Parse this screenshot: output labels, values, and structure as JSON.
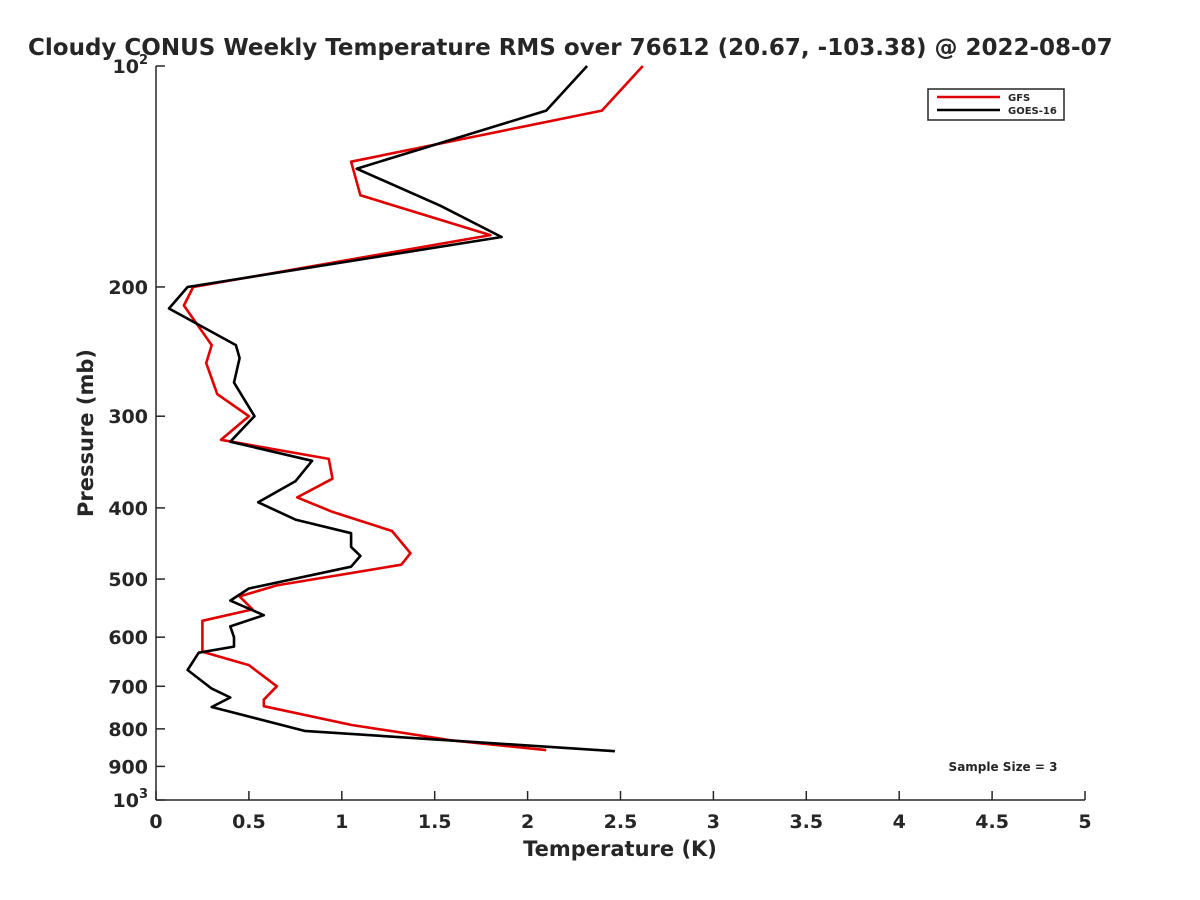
{
  "chart_data": {
    "type": "line",
    "title": "Cloudy CONUS Weekly Temperature RMS over 76612 (20.67, -103.38) @ 2022-08-07",
    "xlabel": "Temperature (K)",
    "ylabel": "Pressure (mb)",
    "xlim": [
      0,
      5
    ],
    "ylim": [
      100,
      1000
    ],
    "yscale": "log",
    "yreversed": true,
    "x_ticks": [
      0,
      0.5,
      1,
      1.5,
      2,
      2.5,
      3,
      3.5,
      4,
      4.5,
      5
    ],
    "x_tick_labels": [
      "0",
      "0.5",
      "1",
      "1.5",
      "2",
      "2.5",
      "3",
      "3.5",
      "4",
      "4.5",
      "5"
    ],
    "y_ticks": [
      100,
      200,
      300,
      400,
      500,
      600,
      700,
      800,
      900,
      1000
    ],
    "y_tick_labels": [
      {
        "base": "10",
        "exp": "2"
      },
      {
        "text": "200"
      },
      {
        "text": "300"
      },
      {
        "text": "400"
      },
      {
        "text": "500"
      },
      {
        "text": "600"
      },
      {
        "text": "700"
      },
      {
        "text": "800"
      },
      {
        "text": "900"
      },
      {
        "base": "10",
        "exp": "3"
      }
    ],
    "legend": {
      "position": "top-right"
    },
    "annotation": "Sample Size = 3",
    "grid": false,
    "series": [
      {
        "name": "GFS",
        "color": "#e00000",
        "points": [
          [
            2.62,
            100
          ],
          [
            2.4,
            115
          ],
          [
            1.05,
            135
          ],
          [
            1.1,
            150
          ],
          [
            1.8,
            170
          ],
          [
            0.2,
            200
          ],
          [
            0.15,
            212
          ],
          [
            0.3,
            240
          ],
          [
            0.27,
            254
          ],
          [
            0.33,
            280
          ],
          [
            0.5,
            300
          ],
          [
            0.35,
            323
          ],
          [
            0.93,
            343
          ],
          [
            0.95,
            365
          ],
          [
            0.76,
            387
          ],
          [
            0.95,
            405
          ],
          [
            1.27,
            430
          ],
          [
            1.37,
            461
          ],
          [
            1.32,
            478
          ],
          [
            0.65,
            510
          ],
          [
            0.45,
            528
          ],
          [
            0.52,
            550
          ],
          [
            0.25,
            570
          ],
          [
            0.25,
            601
          ],
          [
            0.25,
            628
          ],
          [
            0.5,
            655
          ],
          [
            0.65,
            700
          ],
          [
            0.58,
            730
          ],
          [
            0.58,
            745
          ],
          [
            1.05,
            790
          ],
          [
            1.6,
            830
          ],
          [
            2.1,
            855
          ]
        ]
      },
      {
        "name": "GOES-16",
        "color": "#000000",
        "points": [
          [
            2.32,
            100
          ],
          [
            2.1,
            115
          ],
          [
            1.08,
            138
          ],
          [
            1.53,
            155
          ],
          [
            1.86,
            171
          ],
          [
            0.17,
            200
          ],
          [
            0.07,
            214
          ],
          [
            0.43,
            240
          ],
          [
            0.45,
            250
          ],
          [
            0.42,
            270
          ],
          [
            0.53,
            300
          ],
          [
            0.4,
            325
          ],
          [
            0.84,
            345
          ],
          [
            0.75,
            368
          ],
          [
            0.55,
            393
          ],
          [
            0.75,
            415
          ],
          [
            1.05,
            433
          ],
          [
            1.05,
            452
          ],
          [
            1.1,
            465
          ],
          [
            1.05,
            481
          ],
          [
            0.5,
            515
          ],
          [
            0.4,
            535
          ],
          [
            0.58,
            560
          ],
          [
            0.4,
            580
          ],
          [
            0.42,
            600
          ],
          [
            0.42,
            618
          ],
          [
            0.23,
            630
          ],
          [
            0.17,
            665
          ],
          [
            0.3,
            705
          ],
          [
            0.4,
            725
          ],
          [
            0.3,
            747
          ],
          [
            0.8,
            805
          ],
          [
            2.47,
            858
          ]
        ]
      }
    ]
  }
}
